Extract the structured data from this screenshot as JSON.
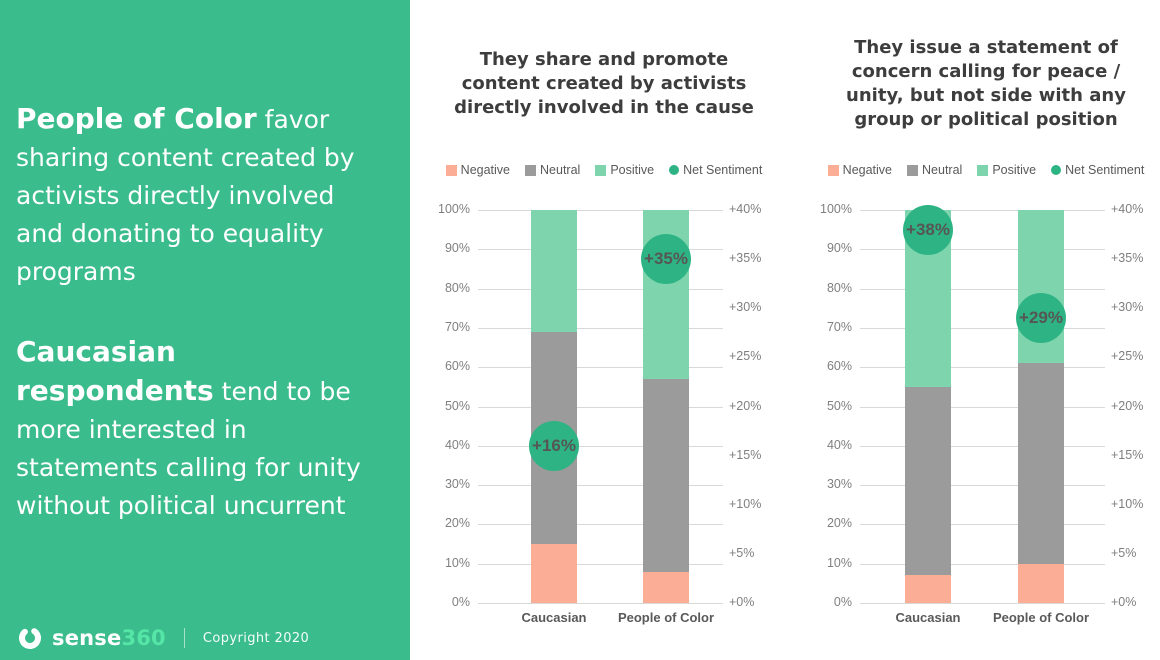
{
  "sidebar": {
    "background_color": "#3bbc8c",
    "paragraphs": [
      {
        "text": "People of Color favor sharing content created by activists directly involved and donating to equality programs",
        "lines": [
          {
            "bold": "People of Color",
            "rest": " favor"
          },
          {
            "bold": "",
            "rest": "sharing content created by"
          },
          {
            "bold": "",
            "rest": "activists directly involved"
          },
          {
            "bold": "",
            "rest": "and donating to equality"
          },
          {
            "bold": "",
            "rest": "programs"
          }
        ]
      },
      {
        "text": "Caucasian respondents tend to be more interested in statements calling for unity without political uncurrent",
        "lines": [
          {
            "bold": "Caucasian",
            "rest": ""
          },
          {
            "bold": "respondents",
            "rest": " tend to be"
          },
          {
            "bold": "",
            "rest": "more interested in"
          },
          {
            "bold": "",
            "rest": "statements calling for unity"
          },
          {
            "bold": "",
            "rest": "without political uncurrent"
          }
        ]
      }
    ],
    "footer": {
      "logo_text_1": "sense",
      "logo_text_2": "360",
      "logo_accent_color": "#55e5a6",
      "copyright": "Copyright 2020"
    }
  },
  "legend": [
    {
      "label": "Negative",
      "color": "#fbad96",
      "shape": "square"
    },
    {
      "label": "Neutral",
      "color": "#9b9b9b",
      "shape": "square"
    },
    {
      "label": "Positive",
      "color": "#7ed5ad",
      "shape": "square"
    },
    {
      "label": "Net Sentiment",
      "color": "#2eb484",
      "shape": "circle"
    }
  ],
  "chart_data": [
    {
      "type": "bar",
      "stacked": true,
      "grid": true,
      "legend_position": "top",
      "title": "They share and promote content created by activists directly involved in the cause",
      "title_lines": "They share and promote\ncontent created by activists\ndirectly involved in the cause",
      "categories": [
        "Caucasian",
        "People of Color"
      ],
      "series": [
        {
          "name": "Negative",
          "color": "#fbad96",
          "values": [
            15,
            8
          ]
        },
        {
          "name": "Neutral",
          "color": "#9b9b9b",
          "values": [
            54,
            49
          ]
        },
        {
          "name": "Positive",
          "color": "#7ed5ad",
          "values": [
            31,
            43
          ]
        }
      ],
      "net_sentiment": {
        "name": "Net Sentiment",
        "color": "#2eb484",
        "values": [
          16,
          35
        ],
        "labels": [
          "+16%",
          "+35%"
        ]
      },
      "axes": {
        "left_label_suffix": "%",
        "left_range": [
          0,
          100
        ],
        "left_ticks": [
          "0%",
          "10%",
          "20%",
          "30%",
          "40%",
          "50%",
          "60%",
          "70%",
          "80%",
          "90%",
          "100%"
        ],
        "right_range": [
          0,
          40
        ],
        "right_ticks": [
          "+0%",
          "+5%",
          "+10%",
          "+15%",
          "+20%",
          "+25%",
          "+30%",
          "+35%",
          "+40%"
        ]
      }
    },
    {
      "type": "bar",
      "stacked": true,
      "grid": true,
      "legend_position": "top",
      "title": "They issue a statement of concern calling for peace / unity, but not side with any group or political position",
      "title_lines": "They issue a statement of\nconcern calling for peace /\nunity, but not side with any\ngroup or political position",
      "categories": [
        "Caucasian",
        "People of Color"
      ],
      "series": [
        {
          "name": "Negative",
          "color": "#fbad96",
          "values": [
            7,
            10
          ]
        },
        {
          "name": "Neutral",
          "color": "#9b9b9b",
          "values": [
            48,
            51
          ]
        },
        {
          "name": "Positive",
          "color": "#7ed5ad",
          "values": [
            45,
            39
          ]
        }
      ],
      "net_sentiment": {
        "name": "Net Sentiment",
        "color": "#2eb484",
        "values": [
          38,
          29
        ],
        "labels": [
          "+38%",
          "+29%"
        ]
      },
      "axes": {
        "left_label_suffix": "%",
        "left_range": [
          0,
          100
        ],
        "left_ticks": [
          "0%",
          "10%",
          "20%",
          "30%",
          "40%",
          "50%",
          "60%",
          "70%",
          "80%",
          "90%",
          "100%"
        ],
        "right_range": [
          0,
          40
        ],
        "right_ticks": [
          "+0%",
          "+5%",
          "+10%",
          "+15%",
          "+20%",
          "+25%",
          "+30%",
          "+35%",
          "+40%"
        ]
      }
    }
  ]
}
